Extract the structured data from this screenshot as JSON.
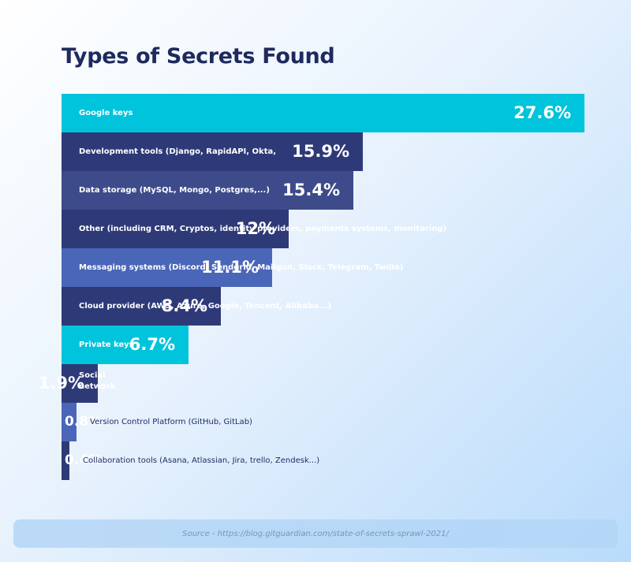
{
  "title": "Types of Secrets Found",
  "source": "Source - https://blog.gitguardian.com/state-of-secrets-sprawl-2021/",
  "colors": {
    "cyan": "#00c4dc",
    "navy": "#2e3a78",
    "slate": "#3d4b8a",
    "blue": "#4a66b8"
  },
  "chart_data": {
    "type": "bar",
    "orientation": "horizontal",
    "categories": [
      "Google keys",
      "Development tools (Django, RapidAPI, Okta,",
      "Data storage (MySQL, Mongo, Postgres,...)",
      "Other (including CRM, Cryptos, identity providers, payments systems, monitoring)",
      "Messaging systems (Discord, Sendgrid, Mailgun, Slack, Telegram, Twilio)",
      "Cloud provider (AWS, Azure, Google, Tencent, Alibaba...)",
      "Private keys",
      "Social network",
      "Version Control Platform (GitHub, GitLab)",
      "Collaboration tools (Asana, Atlassian, Jira, trello, Zendesk...)"
    ],
    "values": [
      27.6,
      15.9,
      15.4,
      12,
      11.1,
      8.4,
      6.7,
      1.9,
      0.8,
      0.4
    ],
    "value_labels": [
      "27.6%",
      "15.9%",
      "15.4%",
      "12%",
      "11.1%",
      "8.4%",
      "6.7%",
      "1.9%",
      "0.8%",
      "0.4%"
    ],
    "bar_colors": [
      "cyan",
      "navy",
      "slate",
      "navy",
      "blue",
      "navy",
      "cyan",
      "navy",
      "blue",
      "navy"
    ],
    "label_position": [
      "inside",
      "inside",
      "inside",
      "inside",
      "inside",
      "inside",
      "inside",
      "inside",
      "outside",
      "outside"
    ],
    "xlim": [
      0,
      27.6
    ],
    "grid": false,
    "legend": "none"
  }
}
